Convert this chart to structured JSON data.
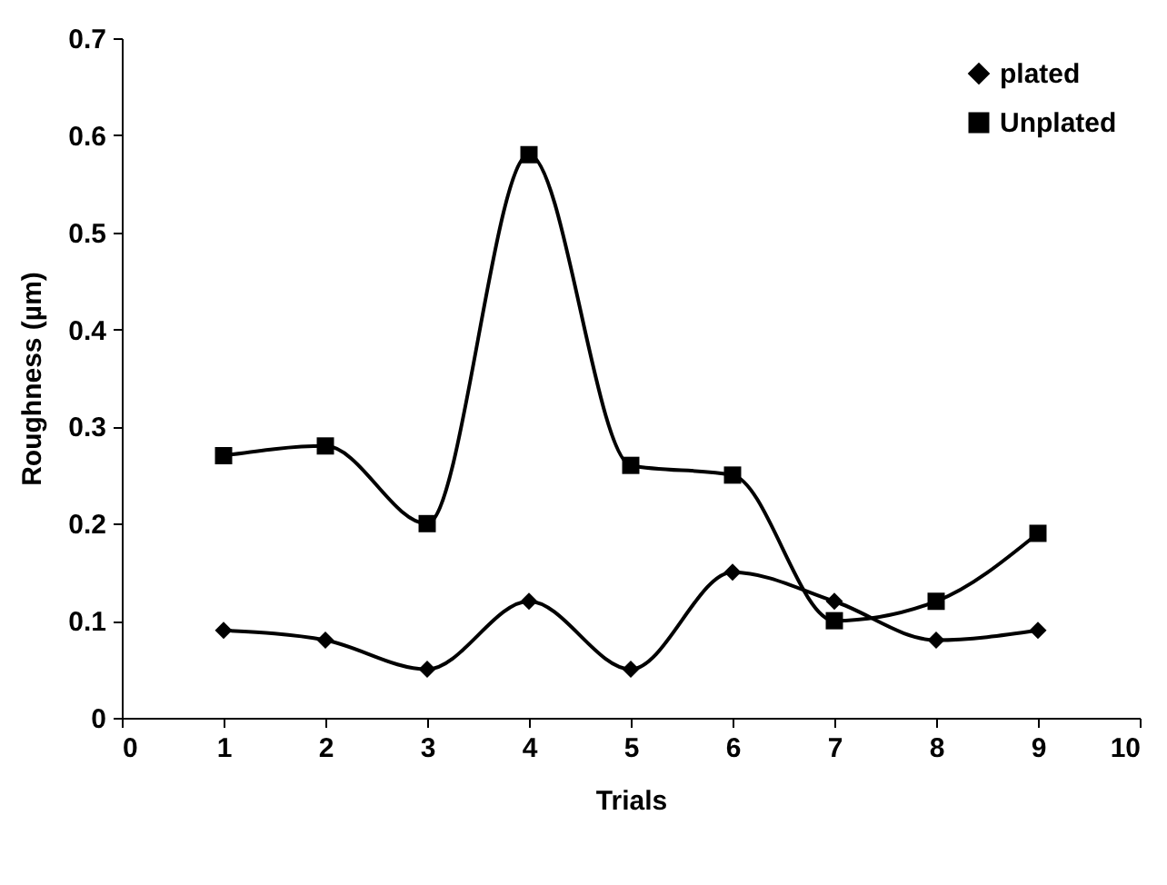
{
  "chart_data": {
    "type": "line",
    "xlabel": "Trials",
    "ylabel": "Roughness (µm)",
    "x": [
      1,
      2,
      3,
      4,
      5,
      6,
      7,
      8,
      9
    ],
    "series": [
      {
        "name": "plated",
        "color": "#000000",
        "marker": "diamond",
        "values": [
          0.09,
          0.08,
          0.05,
          0.12,
          0.05,
          0.15,
          0.12,
          0.08,
          0.09
        ]
      },
      {
        "name": "Unplated",
        "color": "#000000",
        "marker": "square",
        "values": [
          0.27,
          0.28,
          0.2,
          0.58,
          0.26,
          0.25,
          0.1,
          0.12,
          0.19
        ]
      }
    ],
    "xlim": [
      0,
      10
    ],
    "xticks": [
      0,
      1,
      2,
      3,
      4,
      5,
      6,
      7,
      8,
      9,
      10
    ],
    "ylim": [
      0,
      0.7
    ],
    "yticks": [
      0,
      0.1,
      0.2,
      0.3,
      0.4,
      0.5,
      0.6,
      0.7
    ],
    "grid": false,
    "legend": "top right",
    "line_style": "solid"
  }
}
